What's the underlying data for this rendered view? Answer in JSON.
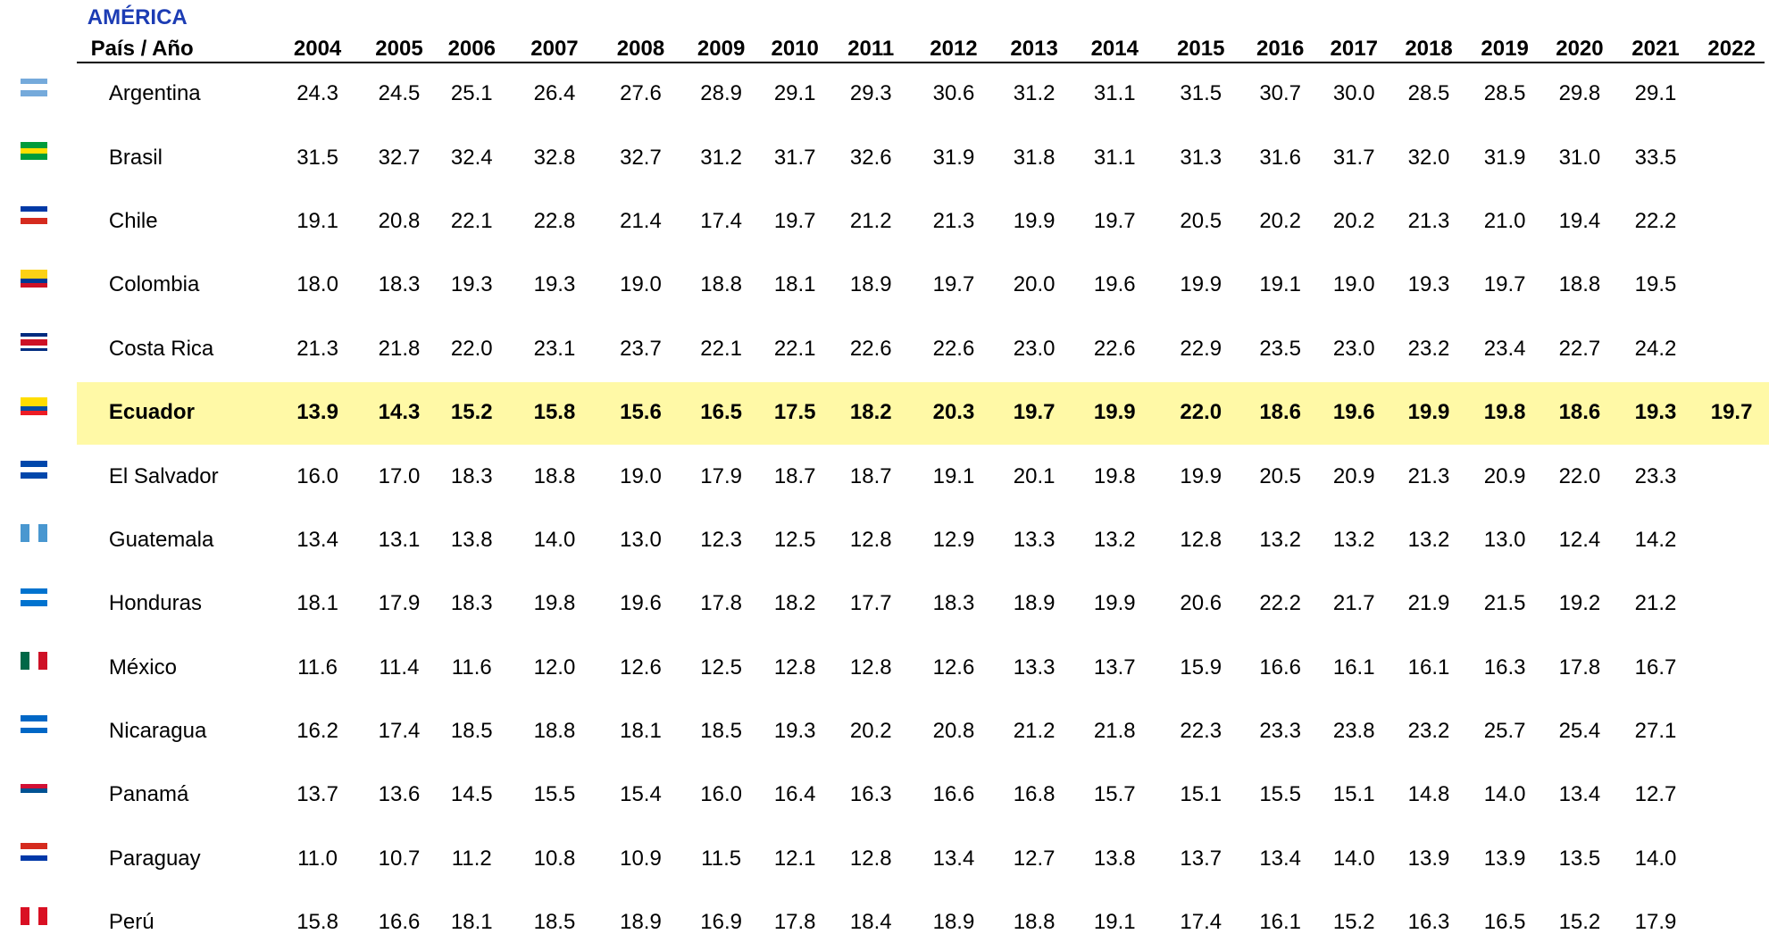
{
  "table": {
    "title": "AMÉRICA",
    "header": [
      "País / Año",
      "2004",
      "2005",
      "2006",
      "2007",
      "2008",
      "2009",
      "2010",
      "2011",
      "2012",
      "2013",
      "2014",
      "2015",
      "2016",
      "2017",
      "2018",
      "2019",
      "2020",
      "2021",
      "2022"
    ],
    "rows": [
      [
        "Argentina",
        "24.3",
        "24.5",
        "25.1",
        "26.4",
        "27.6",
        "28.9",
        "29.1",
        "29.3",
        "30.6",
        "31.2",
        "31.1",
        "31.5",
        "30.7",
        "30.0",
        "28.5",
        "28.5",
        "29.8",
        "29.1"
      ],
      [
        "Brasil",
        "31.5",
        "32.7",
        "32.4",
        "32.8",
        "32.7",
        "31.2",
        "31.7",
        "32.6",
        "31.9",
        "31.8",
        "31.1",
        "31.3",
        "31.6",
        "31.7",
        "32.0",
        "31.9",
        "31.0",
        "33.5"
      ],
      [
        "Chile",
        "19.1",
        "20.8",
        "22.1",
        "22.8",
        "21.4",
        "17.4",
        "19.7",
        "21.2",
        "21.3",
        "19.9",
        "19.7",
        "20.5",
        "20.2",
        "20.2",
        "21.3",
        "21.0",
        "19.4",
        "22.2"
      ],
      [
        "Colombia",
        "18.0",
        "18.3",
        "19.3",
        "19.3",
        "19.0",
        "18.8",
        "18.1",
        "18.9",
        "19.7",
        "20.0",
        "19.6",
        "19.9",
        "19.1",
        "19.0",
        "19.3",
        "19.7",
        "18.8",
        "19.5"
      ],
      [
        "Costa Rica",
        "21.3",
        "21.8",
        "22.0",
        "23.1",
        "23.7",
        "22.1",
        "22.1",
        "22.6",
        "22.6",
        "23.0",
        "22.6",
        "22.9",
        "23.5",
        "23.0",
        "23.2",
        "23.4",
        "22.7",
        "24.2"
      ],
      [
        "Ecuador",
        "13.9",
        "14.3",
        "15.2",
        "15.8",
        "15.6",
        "16.5",
        "17.5",
        "18.2",
        "20.3",
        "19.7",
        "19.9",
        "22.0",
        "18.6",
        "19.6",
        "19.9",
        "19.8",
        "18.6",
        "19.3",
        "19.7"
      ],
      [
        "El Salvador",
        "16.0",
        "17.0",
        "18.3",
        "18.8",
        "19.0",
        "17.9",
        "18.7",
        "18.7",
        "19.1",
        "20.1",
        "19.8",
        "19.9",
        "20.5",
        "20.9",
        "21.3",
        "20.9",
        "22.0",
        "23.3"
      ],
      [
        "Guatemala",
        "13.4",
        "13.1",
        "13.8",
        "14.0",
        "13.0",
        "12.3",
        "12.5",
        "12.8",
        "12.9",
        "13.3",
        "13.2",
        "12.8",
        "13.2",
        "13.2",
        "13.2",
        "13.0",
        "12.4",
        "14.2"
      ],
      [
        "Honduras",
        "18.1",
        "17.9",
        "18.3",
        "19.8",
        "19.6",
        "17.8",
        "18.2",
        "17.7",
        "18.3",
        "18.9",
        "19.9",
        "20.6",
        "22.2",
        "21.7",
        "21.9",
        "21.5",
        "19.2",
        "21.2"
      ],
      [
        "México",
        "11.6",
        "11.4",
        "11.6",
        "12.0",
        "12.6",
        "12.5",
        "12.8",
        "12.8",
        "12.6",
        "13.3",
        "13.7",
        "15.9",
        "16.6",
        "16.1",
        "16.1",
        "16.3",
        "17.8",
        "16.7"
      ],
      [
        "Nicaragua",
        "16.2",
        "17.4",
        "18.5",
        "18.8",
        "18.1",
        "18.5",
        "19.3",
        "20.2",
        "20.8",
        "21.2",
        "21.8",
        "22.3",
        "23.3",
        "23.8",
        "23.2",
        "25.7",
        "25.4",
        "27.1"
      ],
      [
        "Panamá",
        "13.7",
        "13.6",
        "14.5",
        "15.5",
        "15.4",
        "16.0",
        "16.4",
        "16.3",
        "16.6",
        "16.8",
        "15.7",
        "15.1",
        "15.5",
        "15.1",
        "14.8",
        "14.0",
        "13.4",
        "12.7"
      ],
      [
        "Paraguay",
        "11.0",
        "10.7",
        "11.2",
        "10.8",
        "10.9",
        "11.5",
        "12.1",
        "12.8",
        "13.4",
        "12.7",
        "13.8",
        "13.7",
        "13.4",
        "14.0",
        "13.9",
        "13.9",
        "13.5",
        "14.0"
      ],
      [
        "Perú",
        "15.8",
        "16.6",
        "18.1",
        "18.5",
        "18.9",
        "16.9",
        "17.8",
        "18.4",
        "18.9",
        "18.8",
        "19.1",
        "17.4",
        "16.1",
        "15.2",
        "16.3",
        "16.5",
        "15.2",
        "17.9"
      ]
    ]
  }
}
